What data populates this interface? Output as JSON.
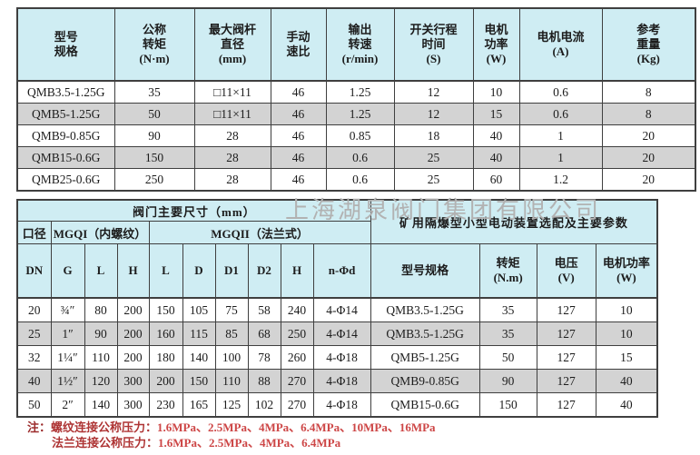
{
  "colors": {
    "header_bg": "#cfedf3",
    "alt_row_bg": "#d3d3d3",
    "border": "#3f3f3f",
    "note_label": "#9c2d2d",
    "note_values": "#cd4646",
    "watermark": "#b2b2b2"
  },
  "watermark": {
    "text": "上海湖泉阀门集团有限公司"
  },
  "table1": {
    "headers": [
      [
        "型号",
        "规格"
      ],
      [
        "公称",
        "转矩",
        "(N·m)"
      ],
      [
        "最大阀杆",
        "直径",
        "(mm)"
      ],
      [
        "手动",
        "速比"
      ],
      [
        "输出",
        "转速",
        "(r/min)"
      ],
      [
        "开关行程",
        "时间",
        "(S)"
      ],
      [
        "电机",
        "功率",
        "(W)"
      ],
      [
        "电机电流",
        "(A)"
      ],
      [
        "参考",
        "重量",
        "(Kg)"
      ]
    ],
    "rows": [
      [
        "QMB3.5-1.25G",
        "35",
        "□11×11",
        "46",
        "1.25",
        "12",
        "10",
        "0.6",
        "8"
      ],
      [
        "QMB5-1.25G",
        "50",
        "□11×11",
        "46",
        "1.25",
        "12",
        "15",
        "0.6",
        "8"
      ],
      [
        "QMB9-0.85G",
        "90",
        "28",
        "46",
        "0.85",
        "18",
        "40",
        "1",
        "20"
      ],
      [
        "QMB15-0.6G",
        "150",
        "28",
        "46",
        "0.6",
        "25",
        "40",
        "1",
        "20"
      ],
      [
        "QMB25-0.6G",
        "250",
        "28",
        "46",
        "0.6",
        "25",
        "60",
        "1.2",
        "20"
      ]
    ]
  },
  "table2": {
    "title_dims": "阀门主要尺寸（mm）",
    "title_right": "矿用隔爆型小型电动装置选配及主要参数",
    "group_bore": "口径",
    "group_mgqi": "MGQI（内螺纹）",
    "group_mgqii": "MGQII（法兰式）",
    "col_headers": [
      [
        "DN"
      ],
      [
        "G"
      ],
      [
        "L"
      ],
      [
        "H"
      ],
      [
        "L"
      ],
      [
        "D"
      ],
      [
        "D1"
      ],
      [
        "D2"
      ],
      [
        "H"
      ],
      [
        "n-Φd"
      ],
      [
        "型号规格"
      ],
      [
        "转矩",
        "(N.m)"
      ],
      [
        "电压",
        "(V)"
      ],
      [
        "电机功率",
        "(W)"
      ]
    ],
    "rows": [
      [
        "20",
        "¾″",
        "80",
        "200",
        "150",
        "105",
        "75",
        "58",
        "240",
        "4-Φ14",
        "QMB3.5-1.25G",
        "35",
        "127",
        "10"
      ],
      [
        "25",
        "1″",
        "90",
        "200",
        "160",
        "115",
        "85",
        "68",
        "250",
        "4-Φ14",
        "QMB3.5-1.25G",
        "35",
        "127",
        "10"
      ],
      [
        "32",
        "1¼″",
        "110",
        "200",
        "180",
        "140",
        "100",
        "78",
        "260",
        "4-Φ18",
        "QMB5-1.25G",
        "50",
        "127",
        "15"
      ],
      [
        "40",
        "1½″",
        "120",
        "300",
        "200",
        "150",
        "110",
        "88",
        "270",
        "4-Φ18",
        "QMB9-0.85G",
        "90",
        "127",
        "40"
      ],
      [
        "50",
        "2″",
        "140",
        "300",
        "230",
        "165",
        "125",
        "102",
        "270",
        "4-Φ18",
        "QMB15-0.6G",
        "150",
        "127",
        "40"
      ]
    ]
  },
  "notes": {
    "label": "注：",
    "line1_label": "螺纹连接公称压力：",
    "line1_values": "1.6MPa、2.5MPa、4MPa、6.4MPa、10MPa、16MPa",
    "line2_label": "法兰连接公称压力：",
    "line2_values": "1.6MPa、2.5MPa、4MPa、6.4MPa"
  }
}
